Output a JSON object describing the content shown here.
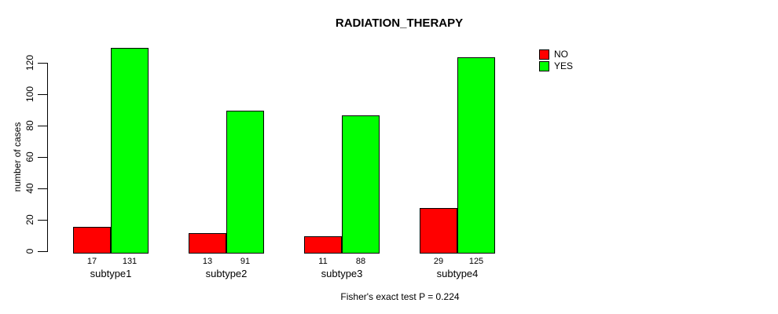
{
  "title": "RADIATION_THERAPY",
  "y_axis": {
    "label": "number of cases",
    "ticks": [
      0,
      20,
      40,
      60,
      80,
      100,
      120
    ]
  },
  "x_axis": {
    "categories": [
      "subtype1",
      "subtype2",
      "subtype3",
      "subtype4"
    ]
  },
  "legend": {
    "items": [
      {
        "label": "NO",
        "color": "#ff0000"
      },
      {
        "label": "YES",
        "color": "#00ff00"
      }
    ]
  },
  "footer": "Fisher's exact test P = 0.224",
  "colors": {
    "bar_border": "#000000",
    "axis": "#000000",
    "background": "#ffffff"
  },
  "chart_data": {
    "type": "bar",
    "title": "RADIATION_THERAPY",
    "categories": [
      "subtype1",
      "subtype2",
      "subtype3",
      "subtype4"
    ],
    "series": [
      {
        "name": "NO",
        "color": "#ff0000",
        "values": [
          17,
          13,
          11,
          29
        ]
      },
      {
        "name": "YES",
        "color": "#00ff00",
        "values": [
          131,
          91,
          88,
          125
        ]
      }
    ],
    "xlabel": "",
    "ylabel": "number of cases",
    "ylim": [
      0,
      131
    ],
    "yticks": [
      0,
      20,
      40,
      60,
      80,
      100,
      120
    ],
    "grid": false,
    "legend_position": "top-right-outside",
    "bar_value_labels_shown": true,
    "annotation": "Fisher's exact test P = 0.224"
  }
}
